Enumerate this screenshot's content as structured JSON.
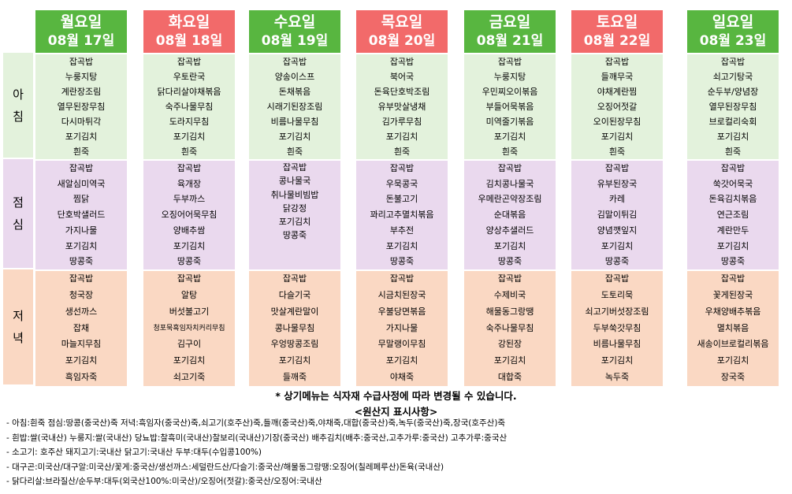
{
  "meal_labels": {
    "breakfast": [
      "아",
      "침"
    ],
    "lunch": [
      "점",
      "심"
    ],
    "dinner": [
      "저",
      "녁"
    ]
  },
  "days": [
    {
      "day": "월요일",
      "date": "08월 17일",
      "color": "#58b640",
      "breakfast": [
        "잡곡밥",
        "누룽지탕",
        "계란장조림",
        "열무된장무침",
        "다시마튀각",
        "포기김치",
        "흰죽"
      ],
      "lunch": [
        "잡곡밥",
        "새알심미역국",
        "찜닭",
        "단호박샐러드",
        "가지나물",
        "포기김치",
        "땅콩죽"
      ],
      "dinner": [
        "잡곡밥",
        "청국장",
        "생선까스",
        "잡채",
        "마늘지무침",
        "포기김치",
        "흑임자죽"
      ]
    },
    {
      "day": "화요일",
      "date": "08월 18일",
      "color": "#f26a6a",
      "breakfast": [
        "잡곡밥",
        "우토란국",
        "닭다리살야채볶음",
        "숙주나물무침",
        "도라지무침",
        "포기김치",
        "흰죽"
      ],
      "lunch": [
        "잡곡밥",
        "육개장",
        "두부까스",
        "오징어어묵무침",
        "양배추쌈",
        "포기김치",
        "땅콩죽"
      ],
      "dinner": [
        "잡곡밥",
        "알탕",
        "버섯불고기",
        "청포묵흑임자치커리무침",
        "김구이",
        "포기김치",
        "쇠고기죽"
      ]
    },
    {
      "day": "수요일",
      "date": "08월 19일",
      "color": "#58b640",
      "breakfast": [
        "잡곡밥",
        "양송이스프",
        "돈채볶음",
        "시래기된장조림",
        "비름나물무침",
        "포기김치",
        "흰죽"
      ],
      "lunch": [
        "잡곡밥",
        "",
        "콩나물국",
        "취나물비빔밥",
        "닭강정",
        "포기김치",
        "",
        "땅콩죽"
      ],
      "dinner": [
        "잡곡밥",
        "다슬기국",
        "맛살계란말이",
        "콩나물무침",
        "우엉땅콩조림",
        "포기김치",
        "들깨죽"
      ]
    },
    {
      "day": "목요일",
      "date": "08월 20일",
      "color": "#f26a6a",
      "breakfast": [
        "잡곡밥",
        "북어국",
        "돈육단호박조림",
        "유부맛살냉채",
        "김가루무침",
        "포기김치",
        "흰죽"
      ],
      "lunch": [
        "잡곡밥",
        "우묵콩국",
        "돈불고기",
        "꽈리고추멸치볶음",
        "부추전",
        "포기김치",
        "땅콩죽"
      ],
      "dinner": [
        "잡곡밥",
        "시금치된장국",
        "우불당면볶음",
        "가지나물",
        "무말랭이무침",
        "포기김치",
        "야채죽"
      ]
    },
    {
      "day": "금요일",
      "date": "08월 21일",
      "color": "#58b640",
      "breakfast": [
        "잡곡밥",
        "누룽지탕",
        "우민찌오이볶음",
        "부들어묵볶음",
        "미역줄기볶음",
        "포기김치",
        "흰죽"
      ],
      "lunch": [
        "잡곡밥",
        "김치콩나물국",
        "우메란곤약장조림",
        "순대볶음",
        "양상추샐러드",
        "포기김치",
        "땅콩죽"
      ],
      "dinner": [
        "잡곡밥",
        "수제비국",
        "해물동그랑땡",
        "숙주나물무침",
        "강된장",
        "포기김치",
        "대합죽"
      ]
    },
    {
      "day": "토요일",
      "date": "08월 22일",
      "color": "#f26a6a",
      "breakfast": [
        "잡곡밥",
        "들깨무국",
        "야채계란찜",
        "오징어젓갈",
        "오이된장무침",
        "포기김치",
        "흰죽"
      ],
      "lunch": [
        "잡곡밥",
        "유부된장국",
        "카레",
        "김말이튀김",
        "양념깻잎지",
        "포기김치",
        "땅콩죽"
      ],
      "dinner": [
        "잡곡밥",
        "도토리묵",
        "쇠고기버섯장조림",
        "두부쑥갓무침",
        "비름나물무침",
        "포기김치",
        "녹두죽"
      ]
    },
    {
      "day": "일요일",
      "date": "08월 23일",
      "color": "#58b640",
      "breakfast": [
        "잡곡밥",
        "쇠고기탕국",
        "순두부/양념장",
        "열무된장무침",
        "브로컬리숙회",
        "포기김치",
        "흰죽"
      ],
      "lunch": [
        "잡곡밥",
        "쑥갓어묵국",
        "돈육김치볶음",
        "연근조림",
        "계란만두",
        "포기김치",
        "땅콩죽"
      ],
      "dinner": [
        "잡곡밥",
        "꽃게된장국",
        "우채양배추볶음",
        "멸치볶음",
        "새송이브로컬리볶음",
        "포기김치",
        "장국죽"
      ]
    }
  ],
  "notice": "* 상기메뉴는 식자재 수급사정에 따라 변경될 수 있습니다.",
  "origin_title": "<원산지 표시사항>",
  "origin_lines": [
    "- 아침:흰죽  점심:땅콩(중국산)죽  저녁:흑임자(중국산)죽,쇠고기(호주산)죽,들깨(중국산)죽,야채죽,대합(중국산)죽,녹두(중국산)죽,장국(호주산)죽",
    "- 흰밥:쌀(국내산)  누룽지:쌀(국내산)  당뇨밥:찰흑미(국내산)찰보리(국내산)기장(중국산)  배추김치(배추:중국산,고추가루:중국산)  고추가루:중국산",
    "- 소고기:  호주산    돼지고기:국내산    닭고기:국내산    두부:대두(수입콩100%)",
    "- 대구곤:미국산/대구알:미국산/꽃게:중국산/생선까스:세덜란드산/다슬기:중국산/해물동그랑땡:오징어(칠레페루산)돈육(국내산)",
    "- 닭다리살:브라질산/순두부:대두(외국산100%:미국산)/오징어(젓갈):중국산/오징어:국내산"
  ]
}
